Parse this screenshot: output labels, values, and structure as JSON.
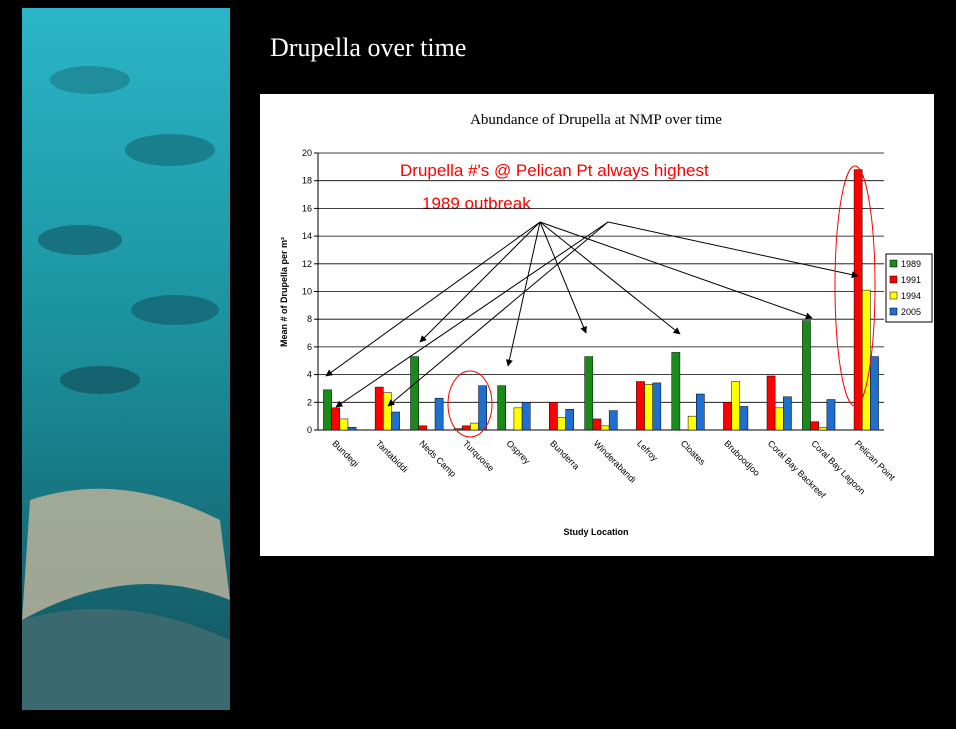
{
  "slide_title": "Drupella over time",
  "chart_data": {
    "type": "bar",
    "title": "Abundance of Drupella at NMP over time",
    "x_label": "Study Location",
    "y_label": "Mean # of Drupella per m²",
    "annotations": [
      "Drupella #'s @ Pelican Pt always highest",
      "1989 outbreak"
    ],
    "categories": [
      "Bundegi",
      "Tantabiddi",
      "Neds Camp",
      "Turquoise",
      "Osprey",
      "Bunderra",
      "Winderabandi",
      "Lefroy",
      "Cloates",
      "Bruboodjoo",
      "Coral Bay Backreef",
      "Coral Bay Lagoon",
      "Pelican Point"
    ],
    "series": [
      {
        "name": "1989",
        "color": "#1a8a1a",
        "values": [
          2.9,
          null,
          5.3,
          0.1,
          3.2,
          null,
          5.3,
          null,
          5.6,
          null,
          null,
          7.9,
          null
        ]
      },
      {
        "name": "1991",
        "color": "#ff0000",
        "values": [
          1.6,
          3.1,
          0.3,
          0.3,
          null,
          2.0,
          0.8,
          3.5,
          null,
          2.0,
          3.9,
          0.6,
          18.8
        ]
      },
      {
        "name": "1994",
        "color": "#ffff00",
        "values": [
          0.8,
          2.7,
          null,
          0.5,
          1.6,
          0.9,
          0.3,
          3.3,
          1.0,
          3.5,
          1.6,
          0.2,
          10.1
        ]
      },
      {
        "name": "2005",
        "color": "#1f6fd0",
        "values": [
          0.2,
          1.3,
          2.3,
          3.2,
          2.0,
          1.5,
          1.4,
          3.4,
          2.6,
          1.7,
          2.4,
          2.2,
          5.3
        ]
      }
    ],
    "ylim": [
      0,
      20
    ],
    "yticks": [
      0,
      2,
      4,
      6,
      8,
      10,
      12,
      14,
      16,
      18,
      20
    ],
    "grid": true,
    "legend": "right"
  }
}
